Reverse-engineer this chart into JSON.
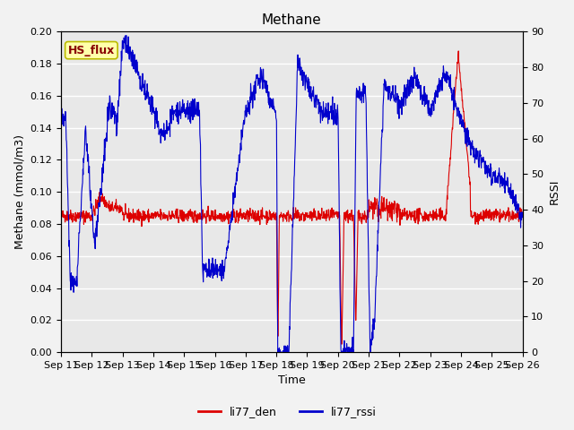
{
  "title": "Methane",
  "xlabel": "Time",
  "ylabel_left": "Methane (mmol/m3)",
  "ylabel_right": "RSSI",
  "left_ylim": [
    0.0,
    0.2
  ],
  "right_ylim": [
    0,
    90
  ],
  "left_yticks": [
    0.0,
    0.02,
    0.04,
    0.06,
    0.08,
    0.1,
    0.12,
    0.14,
    0.16,
    0.18,
    0.2
  ],
  "right_yticks": [
    0,
    10,
    20,
    30,
    40,
    50,
    60,
    70,
    80,
    90
  ],
  "xtick_labels": [
    "Sep 11",
    "Sep 12",
    "Sep 13",
    "Sep 14",
    "Sep 15",
    "Sep 16",
    "Sep 17",
    "Sep 18",
    "Sep 19",
    "Sep 20",
    "Sep 21",
    "Sep 22",
    "Sep 23",
    "Sep 24",
    "Sep 25",
    "Sep 26"
  ],
  "red_color": "#dd0000",
  "blue_color": "#0000cc",
  "bg_color": "#e8e8e8",
  "fig_bg_color": "#f2f2f2",
  "annotation_text": "HS_flux",
  "annotation_bg": "#ffffaa",
  "annotation_border": "#bbbb00",
  "legend_red": "li77_den",
  "legend_blue": "li77_rssi",
  "title_fontsize": 11,
  "axis_fontsize": 9,
  "tick_fontsize": 8,
  "grid_color": "#ffffff",
  "grid_lw": 1.0
}
